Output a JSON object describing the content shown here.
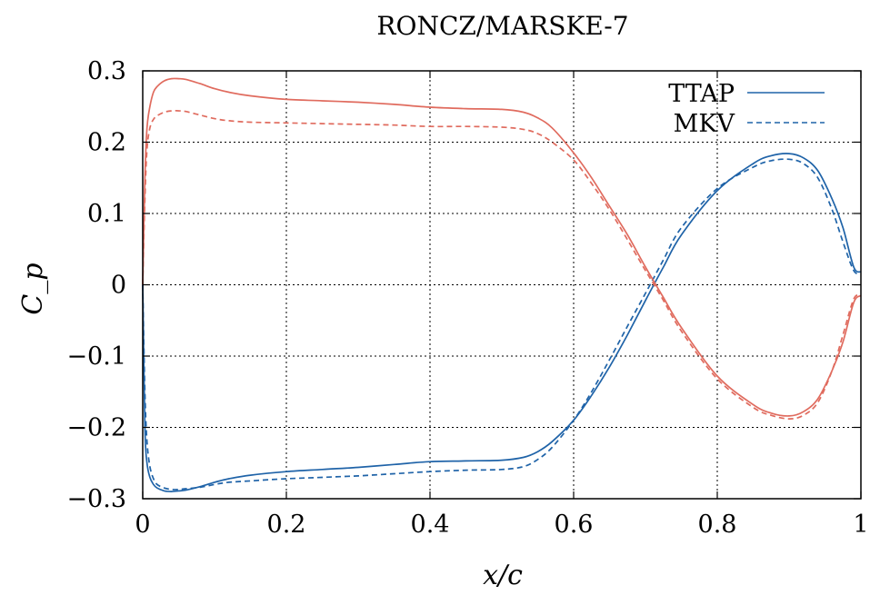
{
  "chart_data": {
    "type": "line",
    "title": "RONCZ/MARSKE-7",
    "xlabel": "x/c",
    "ylabel": "C_p",
    "xlim": [
      0,
      1
    ],
    "ylim": [
      -0.3,
      0.3
    ],
    "grid": true,
    "legend_position": "top-right",
    "x_ticks": [
      "0",
      "0.2",
      "0.4",
      "0.6",
      "0.8",
      "1"
    ],
    "y_ticks": [
      "0.3",
      "0.2",
      "0.1",
      "0",
      "−0.1",
      "−0.2",
      "−0.3"
    ],
    "legend": [
      {
        "label": "TTAP",
        "style": "solid"
      },
      {
        "label": "MKV",
        "style": "dashed"
      }
    ],
    "colors": {
      "blue": "#1f63a8",
      "red": "#e06b5e"
    },
    "series": [
      {
        "name": "TTAP",
        "color": "blue",
        "style": "solid",
        "x": [
          0,
          0.003,
          0.006,
          0.01,
          0.015,
          0.02,
          0.03,
          0.04,
          0.05,
          0.06,
          0.08,
          0.1,
          0.12,
          0.15,
          0.2,
          0.25,
          0.3,
          0.35,
          0.4,
          0.45,
          0.5,
          0.53,
          0.55,
          0.57,
          0.6,
          0.625,
          0.65,
          0.675,
          0.7,
          0.725,
          0.75,
          0.8,
          0.85,
          0.875,
          0.9,
          0.92,
          0.94,
          0.96,
          0.975,
          0.99,
          1.0
        ],
        "y": [
          0.0,
          -0.2,
          -0.25,
          -0.27,
          -0.28,
          -0.285,
          -0.289,
          -0.29,
          -0.289,
          -0.288,
          -0.283,
          -0.277,
          -0.272,
          -0.267,
          -0.262,
          -0.259,
          -0.256,
          -0.252,
          -0.248,
          -0.247,
          -0.246,
          -0.242,
          -0.234,
          -0.22,
          -0.19,
          -0.155,
          -0.115,
          -0.07,
          -0.022,
          0.025,
          0.07,
          0.132,
          0.17,
          0.181,
          0.184,
          0.178,
          0.16,
          0.12,
          0.08,
          0.025,
          0.018
        ]
      },
      {
        "name": "MKV",
        "color": "blue",
        "style": "dashed",
        "x": [
          0,
          0.003,
          0.006,
          0.01,
          0.015,
          0.02,
          0.03,
          0.04,
          0.05,
          0.06,
          0.08,
          0.1,
          0.12,
          0.15,
          0.2,
          0.25,
          0.3,
          0.35,
          0.4,
          0.45,
          0.5,
          0.53,
          0.55,
          0.57,
          0.6,
          0.625,
          0.65,
          0.675,
          0.7,
          0.725,
          0.75,
          0.8,
          0.85,
          0.875,
          0.9,
          0.92,
          0.94,
          0.96,
          0.975,
          0.99,
          1.0
        ],
        "y": [
          0.0,
          -0.15,
          -0.22,
          -0.255,
          -0.272,
          -0.28,
          -0.285,
          -0.287,
          -0.287,
          -0.286,
          -0.284,
          -0.28,
          -0.277,
          -0.275,
          -0.272,
          -0.27,
          -0.268,
          -0.265,
          -0.262,
          -0.26,
          -0.259,
          -0.255,
          -0.245,
          -0.228,
          -0.19,
          -0.15,
          -0.105,
          -0.058,
          -0.012,
          0.035,
          0.08,
          0.135,
          0.165,
          0.174,
          0.176,
          0.17,
          0.15,
          0.105,
          0.06,
          0.02,
          0.016
        ]
      },
      {
        "name": "TTAP",
        "color": "red",
        "style": "solid",
        "x": [
          0,
          0.003,
          0.006,
          0.01,
          0.015,
          0.02,
          0.03,
          0.04,
          0.05,
          0.06,
          0.08,
          0.1,
          0.12,
          0.15,
          0.2,
          0.25,
          0.3,
          0.35,
          0.4,
          0.45,
          0.5,
          0.53,
          0.55,
          0.57,
          0.6,
          0.625,
          0.65,
          0.675,
          0.7,
          0.725,
          0.75,
          0.8,
          0.85,
          0.875,
          0.9,
          0.92,
          0.94,
          0.96,
          0.975,
          0.99,
          1.0
        ],
        "y": [
          0.0,
          0.15,
          0.22,
          0.25,
          0.27,
          0.278,
          0.286,
          0.289,
          0.289,
          0.288,
          0.282,
          0.275,
          0.27,
          0.265,
          0.26,
          0.258,
          0.256,
          0.253,
          0.249,
          0.247,
          0.246,
          0.242,
          0.234,
          0.22,
          0.185,
          0.15,
          0.11,
          0.07,
          0.025,
          -0.018,
          -0.06,
          -0.128,
          -0.168,
          -0.18,
          -0.184,
          -0.178,
          -0.16,
          -0.12,
          -0.08,
          -0.025,
          -0.015
        ]
      },
      {
        "name": "MKV",
        "color": "red",
        "style": "dashed",
        "x": [
          0,
          0.003,
          0.006,
          0.01,
          0.015,
          0.02,
          0.03,
          0.04,
          0.05,
          0.06,
          0.08,
          0.1,
          0.12,
          0.15,
          0.2,
          0.25,
          0.3,
          0.35,
          0.4,
          0.45,
          0.5,
          0.53,
          0.55,
          0.57,
          0.6,
          0.625,
          0.65,
          0.675,
          0.7,
          0.725,
          0.75,
          0.8,
          0.85,
          0.875,
          0.9,
          0.92,
          0.94,
          0.96,
          0.975,
          0.99,
          1.0
        ],
        "y": [
          0.0,
          0.12,
          0.19,
          0.22,
          0.232,
          0.237,
          0.242,
          0.244,
          0.244,
          0.243,
          0.238,
          0.233,
          0.23,
          0.228,
          0.227,
          0.226,
          0.225,
          0.224,
          0.222,
          0.222,
          0.221,
          0.218,
          0.212,
          0.2,
          0.175,
          0.142,
          0.105,
          0.063,
          0.02,
          -0.022,
          -0.065,
          -0.132,
          -0.172,
          -0.183,
          -0.188,
          -0.183,
          -0.165,
          -0.12,
          -0.07,
          -0.02,
          -0.015
        ]
      }
    ]
  }
}
